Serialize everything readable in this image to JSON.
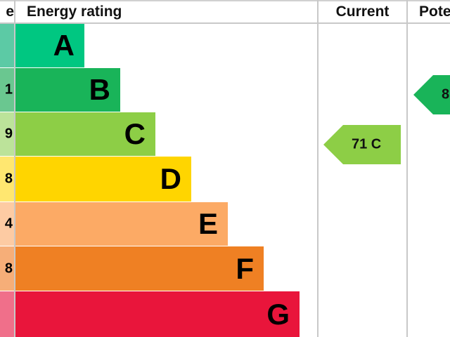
{
  "chart_data": {
    "type": "bar",
    "headers": {
      "score": "e",
      "rating": "Energy rating",
      "current": "Current",
      "potential": "Pote"
    },
    "bands": [
      {
        "letter": "A",
        "score_fragment": "",
        "color": "#00c781",
        "score_color": "#5ccaa5"
      },
      {
        "letter": "B",
        "score_fragment": "1",
        "color": "#19b459",
        "score_color": "#6ac790"
      },
      {
        "letter": "C",
        "score_fragment": "9",
        "color": "#8dce46",
        "score_color": "#bce39a"
      },
      {
        "letter": "D",
        "score_fragment": "8",
        "color": "#ffd500",
        "score_color": "#ffe770"
      },
      {
        "letter": "E",
        "score_fragment": "4",
        "color": "#fcaa65",
        "score_color": "#fdcba3"
      },
      {
        "letter": "F",
        "score_fragment": "8",
        "color": "#ef8023",
        "score_color": "#f6ae78"
      },
      {
        "letter": "G",
        "score_fragment": "",
        "color": "#e9153b",
        "score_color": "#f06f8a"
      }
    ],
    "current": {
      "label": "71 C",
      "value": 71,
      "band": "C",
      "color": "#8dce46"
    },
    "potential": {
      "label": "8",
      "band": "B",
      "color": "#19b459"
    }
  }
}
